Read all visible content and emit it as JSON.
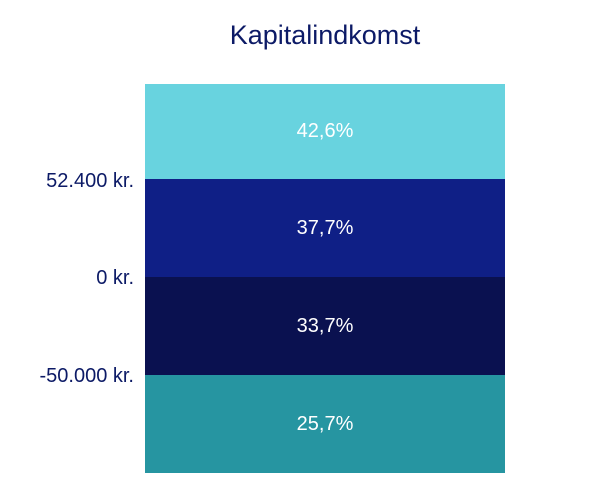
{
  "chart_data": {
    "type": "table",
    "title": "Kapitalindkomst",
    "thresholds": [
      {
        "label": "52.400 kr."
      },
      {
        "label": "0 kr."
      },
      {
        "label": "-50.000 kr."
      }
    ],
    "bands": [
      {
        "label": "42,6%",
        "value": 42.6,
        "color": "#68d3df"
      },
      {
        "label": "37,7%",
        "value": 37.7,
        "color": "#0f1f86"
      },
      {
        "label": "33,7%",
        "value": 33.7,
        "color": "#0a1150"
      },
      {
        "label": "25,7%",
        "value": 25.7,
        "color": "#2695a1"
      }
    ]
  }
}
